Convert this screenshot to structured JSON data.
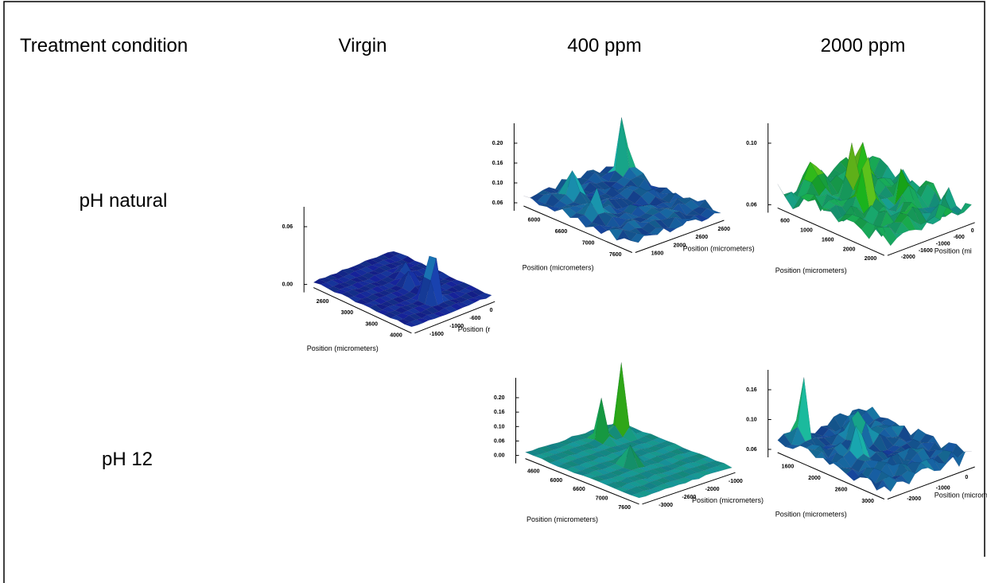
{
  "header": {
    "treatment": "Treatment condition",
    "columns": [
      "Virgin",
      "400 ppm",
      "2000 ppm"
    ]
  },
  "rows": [
    "pH natural",
    "pH 12"
  ],
  "plots": [
    {
      "z_ticks": [
        "0.06",
        "0.00"
      ],
      "x_ticks": [
        "2600",
        "3000",
        "3600",
        "4000"
      ],
      "y_ticks": [
        "0",
        "-600",
        "-1000",
        "-1600"
      ],
      "x_label": "Position (micrometers)",
      "y_label": "Position (r"
    },
    {
      "z_ticks": [
        "0.20",
        "0.16",
        "0.10",
        "0.06"
      ],
      "x_ticks": [
        "6000",
        "6600",
        "7000",
        "7600"
      ],
      "y_ticks": [
        "2600",
        "2600",
        "2000",
        "1600"
      ],
      "x_label": "Position (micrometers)",
      "y_label": "Position (micrometers)"
    },
    {
      "z_ticks": [
        "0.10",
        "0.06"
      ],
      "x_ticks": [
        "600",
        "1000",
        "1600",
        "2000",
        "2000"
      ],
      "y_ticks": [
        "0",
        "-600",
        "-1000",
        "-1600",
        "-2000"
      ],
      "x_label": "Position (micrometers)",
      "y_label": "Position (mi"
    },
    {
      "z_ticks": [
        "0.20",
        "0.16",
        "0.10",
        "0.06",
        "0.00"
      ],
      "x_ticks": [
        "4600",
        "6000",
        "6600",
        "7000",
        "7600"
      ],
      "y_ticks": [
        "-1000",
        "-2000",
        "-2600",
        "-3000"
      ],
      "x_label": "Position (micrometers)",
      "y_label": "Position (micrometers)"
    },
    {
      "z_ticks": [
        "0.16",
        "0.10",
        "0.06"
      ],
      "x_ticks": [
        "1600",
        "2000",
        "2600",
        "3000"
      ],
      "y_ticks": [
        "0",
        "-1000",
        "-2000"
      ],
      "x_label": "Position (micrometers)",
      "y_label": "Position (micrometers)"
    }
  ]
}
